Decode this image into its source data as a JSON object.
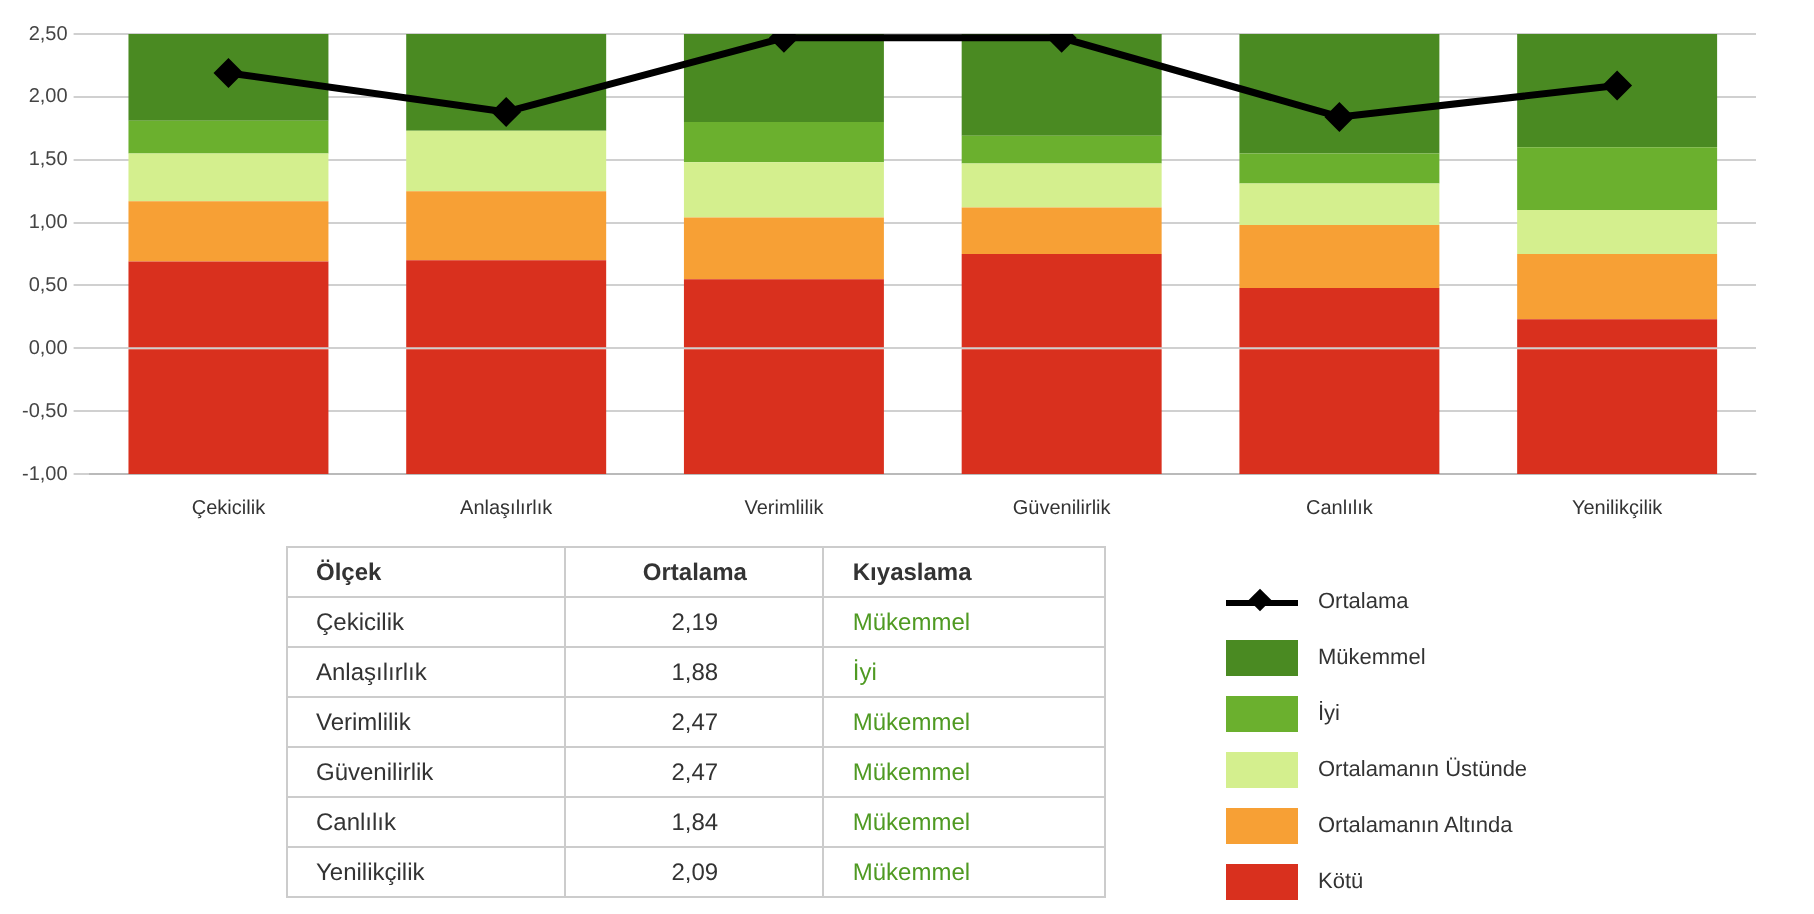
{
  "chart_data": {
    "type": "bar",
    "stacked": true,
    "categories": [
      "Çekicilik",
      "Anlaşılırlık",
      "Verimlilik",
      "Güvenilirlik",
      "Canlılık",
      "Yenilikçilik"
    ],
    "series": [
      {
        "color": "#d9301e",
        "values": [
          -1,
          -1,
          -1,
          -1,
          -1,
          -1
        ]
      },
      {
        "name": "Kötü",
        "color": "#d9301e",
        "values": [
          0.69,
          0.7,
          0.55,
          0.75,
          0.48,
          0.23
        ]
      },
      {
        "name": "Ortalamanın Altında",
        "color": "#f7a035",
        "values": [
          0.48,
          0.55,
          0.49,
          0.37,
          0.5,
          0.52
        ]
      },
      {
        "name": "Ortalamanın Üstünde",
        "color": "#d4ef8e",
        "values": [
          0.38,
          0.48,
          0.44,
          0.35,
          0.33,
          0.35
        ]
      },
      {
        "name": "İyi",
        "color": "#6bb02e",
        "values": [
          0.26,
          0,
          0.32,
          0.22,
          0.24,
          0.5
        ]
      },
      {
        "name": "Mükemmel",
        "color": "#4a8a22",
        "values": [
          0.69,
          0.77,
          0.7,
          0.81,
          0.95,
          0.9
        ]
      },
      {
        "name": "Ortalama",
        "type": "line",
        "color": "#000000",
        "marker": "diamond",
        "values": [
          2.19,
          1.88,
          2.47,
          2.47,
          1.84,
          2.09
        ]
      }
    ],
    "ylim": [
      -1,
      2.5
    ],
    "yticks": [
      {
        "value": -1,
        "label": "-1,00"
      },
      {
        "value": -0.5,
        "label": "-0,50"
      },
      {
        "value": 0,
        "label": "0,00"
      },
      {
        "value": 0.5,
        "label": "0,50"
      },
      {
        "value": 1,
        "label": "1,00"
      },
      {
        "value": 1.5,
        "label": "1,50"
      },
      {
        "value": 2,
        "label": "2,00"
      },
      {
        "value": 2.5,
        "label": "2,50"
      }
    ],
    "grid": "y",
    "legend": "bottom right",
    "annotations": [
      "Ölçek",
      "Ortalama",
      "Kıyaslama",
      "2,19",
      "Mükemmel",
      "1,88",
      "İyi",
      "2,47",
      "Mükemmel",
      "2,47",
      "Mükemmel",
      "1,84",
      "Mükemmel",
      "2,09",
      "Mükemmel"
    ]
  }
}
